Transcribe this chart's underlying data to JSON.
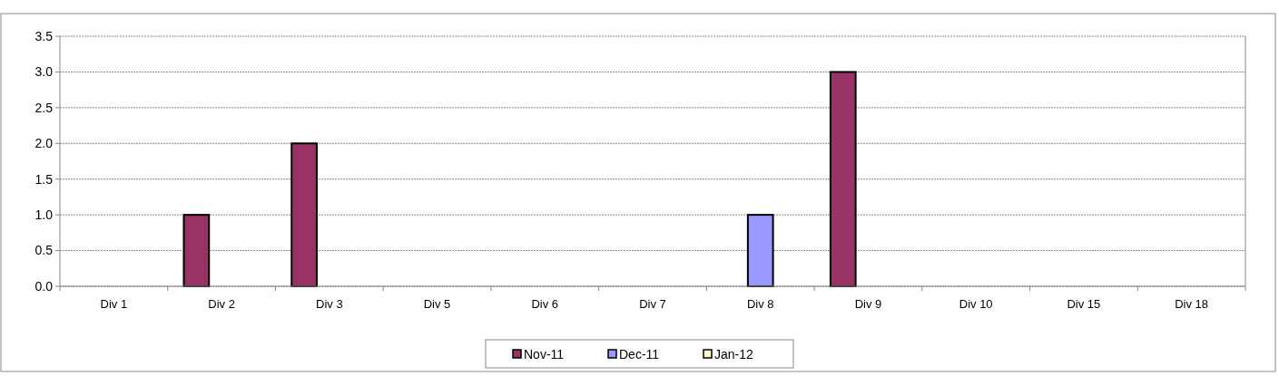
{
  "chart_data": {
    "type": "bar",
    "categories": [
      "Div 1",
      "Div 2",
      "Div 3",
      "Div 5",
      "Div 6",
      "Div 7",
      "Div 8",
      "Div 9",
      "Div 10",
      "Div 15",
      "Div 18"
    ],
    "series": [
      {
        "name": "Nov-11",
        "color": "#993366",
        "values": [
          0,
          1,
          2,
          0,
          0,
          0,
          0,
          3,
          0,
          0,
          0
        ]
      },
      {
        "name": "Dec-11",
        "color": "#9999ff",
        "values": [
          0,
          0,
          0,
          0,
          0,
          0,
          1,
          0,
          0,
          0,
          0
        ]
      },
      {
        "name": "Jan-12",
        "color": "#ffffcc",
        "values": [
          0,
          0,
          0,
          0,
          0,
          0,
          0,
          0,
          0,
          0,
          0
        ]
      }
    ],
    "ylim": [
      0,
      3.5
    ],
    "yticks": [
      {
        "value": 0,
        "label": "0.0"
      },
      {
        "value": 0.5,
        "label": "0.5"
      },
      {
        "value": 1,
        "label": "1.0"
      },
      {
        "value": 1.5,
        "label": "1.5"
      },
      {
        "value": 2,
        "label": "2.0"
      },
      {
        "value": 2.5,
        "label": "2.5"
      },
      {
        "value": 3,
        "label": "3.0"
      },
      {
        "value": 3.5,
        "label": "3.5"
      }
    ],
    "grid": "y",
    "legend": "bottom"
  }
}
